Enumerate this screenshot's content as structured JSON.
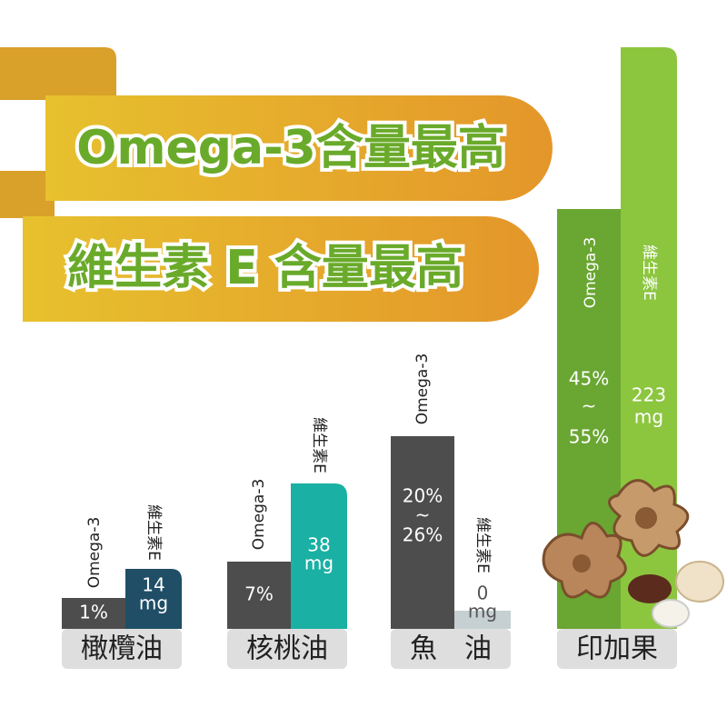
{
  "banners": [
    "Omega-3含量最高",
    "維生素 E 含量最高"
  ],
  "groups": [
    {
      "name": "橄欖油",
      "omega3": {
        "label": "Omega-3",
        "value": [
          "1%"
        ]
      },
      "vitamin_e": {
        "label": "維生素E",
        "value": [
          "14",
          "mg"
        ]
      }
    },
    {
      "name": "核桃油",
      "omega3": {
        "label": "Omega-3",
        "value": [
          "7%"
        ]
      },
      "vitamin_e": {
        "label": "維生素E",
        "value": [
          "38",
          "mg"
        ]
      }
    },
    {
      "name": "魚　油",
      "omega3": {
        "label": "Omega-3",
        "value": [
          "20%",
          "~",
          "26%"
        ]
      },
      "vitamin_e": {
        "label": "維生素E",
        "value": [
          "0",
          "mg"
        ]
      }
    },
    {
      "name": "印加果",
      "omega3": {
        "label": "Omega-3",
        "value": [
          "45%",
          "~",
          "55%"
        ]
      },
      "vitamin_e": {
        "label": "維生素E",
        "value": [
          "223",
          "mg"
        ]
      }
    }
  ]
}
